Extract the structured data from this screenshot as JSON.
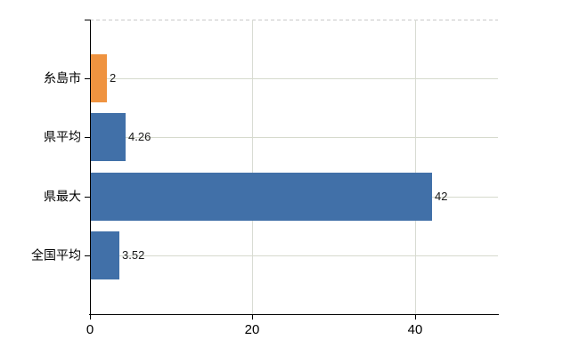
{
  "chart_data": {
    "type": "bar",
    "orientation": "horizontal",
    "categories": [
      "糸島市",
      "県平均",
      "県最大",
      "全国平均"
    ],
    "values": [
      2,
      4.26,
      42,
      3.52
    ],
    "value_labels": [
      "2",
      "4.26",
      "42",
      "3.52"
    ],
    "bar_colors": [
      "#ef9340",
      "#4170a8",
      "#4170a8",
      "#4170a8"
    ],
    "x_ticks": [
      0,
      20,
      40
    ],
    "x_tick_labels": [
      "0",
      "20",
      "40"
    ],
    "xlim": [
      0,
      50.2
    ],
    "grid": true,
    "legend": "none",
    "title": ""
  },
  "colors": {
    "bar_orange": "#ef9340",
    "bar_blue": "#4170a8",
    "gridline_horizontal": "#d6dacd",
    "gridline_vertical": "#d9dcd4",
    "plot_top_border": "#c9c9c9",
    "axis": "#000000",
    "text": "#000000",
    "background": "#ffffff"
  }
}
